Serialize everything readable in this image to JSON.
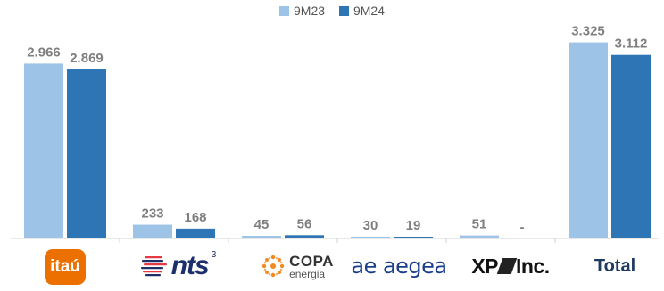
{
  "colors": {
    "series_9M23": "#9dc3e6",
    "series_9M24": "#2e75b6",
    "value_label": "#7f7f7f",
    "axis": "#d0d0d0"
  },
  "legend": {
    "items": [
      "9M23",
      "9M24"
    ]
  },
  "logos": {
    "itau": "itaú",
    "nts": "nts",
    "nts_sup": "3",
    "copa_main": "COPA",
    "copa_sub": "energia",
    "aegea": "ae aegea",
    "xp_left": "XP",
    "xp_right": "Inc.",
    "total": "Total"
  },
  "chart_data": {
    "type": "bar",
    "categories": [
      "itaú",
      "nts",
      "COPA energia",
      "aegea",
      "XP Inc.",
      "Total"
    ],
    "series": [
      {
        "name": "9M23",
        "values": [
          2966,
          233,
          45,
          30,
          51,
          3325
        ],
        "labels": [
          "2.966",
          "233",
          "45",
          "30",
          "51",
          "3.325"
        ]
      },
      {
        "name": "9M24",
        "values": [
          2869,
          168,
          56,
          19,
          null,
          3112
        ],
        "labels": [
          "2.869",
          "168",
          "56",
          "19",
          "-",
          "3.112"
        ]
      }
    ],
    "ylim": [
      0,
      3500
    ],
    "grid": false,
    "legend_position": "top-center"
  }
}
